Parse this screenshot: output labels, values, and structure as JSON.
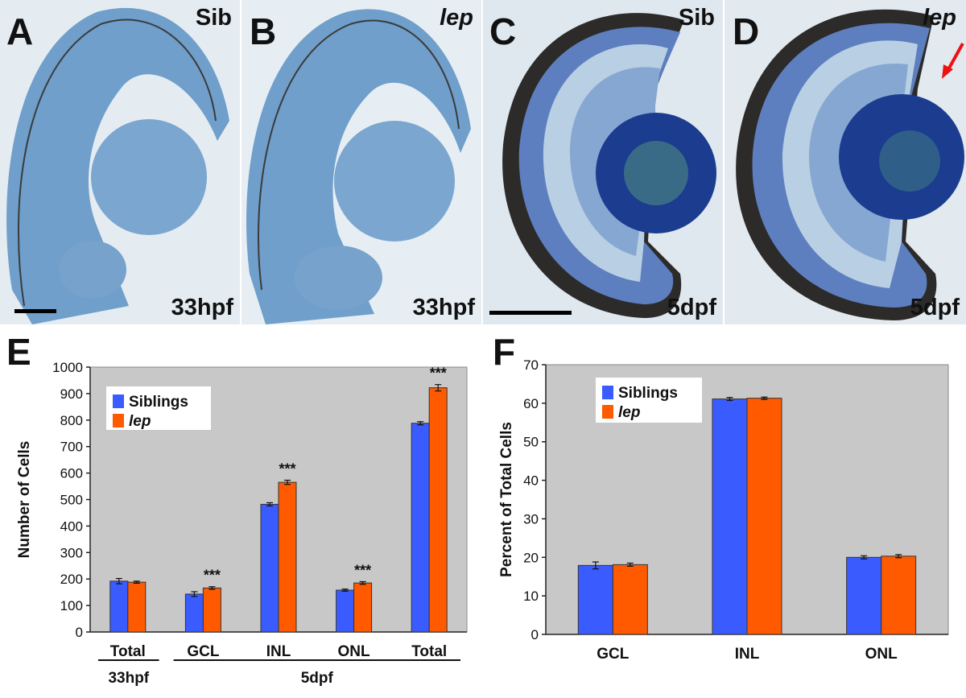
{
  "panels": [
    {
      "letter": "A",
      "tag": "Sib",
      "tag_italic": false,
      "stage": "33hpf"
    },
    {
      "letter": "B",
      "tag": "lep",
      "tag_italic": true,
      "stage": "33hpf"
    },
    {
      "letter": "C",
      "tag": "Sib",
      "tag_italic": false,
      "stage": "5dpf"
    },
    {
      "letter": "D",
      "tag": "lep",
      "tag_italic": true,
      "stage": "5dpf"
    }
  ],
  "chart_data": [
    {
      "panel": "E",
      "type": "bar",
      "ylabel": "Number of Cells",
      "ylim": [
        0,
        1000
      ],
      "yticks": [
        0,
        100,
        200,
        300,
        400,
        500,
        600,
        700,
        800,
        900,
        1000
      ],
      "categories": [
        "Total",
        "GCL",
        "INL",
        "ONL",
        "Total"
      ],
      "groups": [
        {
          "label": "33hpf",
          "categories": [
            0
          ]
        },
        {
          "label": "5dpf",
          "categories": [
            1,
            2,
            3,
            4
          ]
        }
      ],
      "series": [
        {
          "name": "Siblings",
          "color": "#3a5cff",
          "values": [
            192,
            143,
            482,
            158,
            788
          ],
          "errors": [
            10,
            9,
            6,
            4,
            6
          ]
        },
        {
          "name": "lep",
          "color": "#ff5a00",
          "values": [
            188,
            166,
            565,
            185,
            922
          ],
          "errors": [
            4,
            5,
            8,
            5,
            12
          ]
        }
      ],
      "annotations": [
        {
          "category": 1,
          "text": "***"
        },
        {
          "category": 2,
          "text": "***"
        },
        {
          "category": 3,
          "text": "***"
        },
        {
          "category": 4,
          "text": "***"
        }
      ],
      "legend": "top-left",
      "grid": false,
      "plot_background": "#c8c8c8"
    },
    {
      "panel": "F",
      "type": "bar",
      "ylabel": "Percent of Total Cells",
      "ylim": [
        0,
        70
      ],
      "yticks": [
        0,
        10,
        20,
        30,
        40,
        50,
        60,
        70
      ],
      "categories": [
        "GCL",
        "INL",
        "ONL"
      ],
      "series": [
        {
          "name": "Siblings",
          "color": "#3a5cff",
          "values": [
            17.9,
            61.1,
            20.0
          ],
          "errors": [
            0.9,
            0.4,
            0.4
          ]
        },
        {
          "name": "lep",
          "color": "#ff5a00",
          "values": [
            18.1,
            61.3,
            20.3
          ],
          "errors": [
            0.4,
            0.3,
            0.4
          ]
        }
      ],
      "legend": "top-left",
      "grid": false,
      "plot_background": "#c8c8c8"
    }
  ]
}
